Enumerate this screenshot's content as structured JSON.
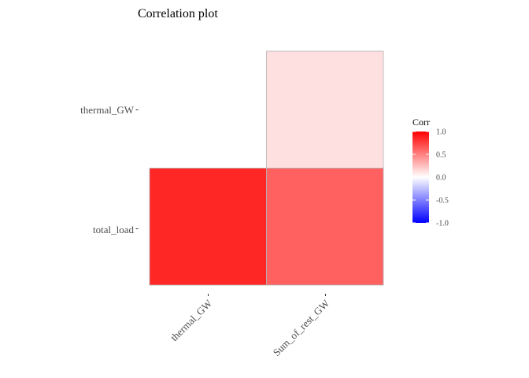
{
  "chart_data": {
    "type": "heatmap",
    "title": "Correlation plot",
    "x_categories": [
      "thermal_GW",
      "Sum_of_rest_GW"
    ],
    "y_categories": [
      "thermal_GW",
      "total_load"
    ],
    "cells": [
      {
        "x": "Sum_of_rest_GW",
        "y": "thermal_GW",
        "value": 0.12
      },
      {
        "x": "thermal_GW",
        "y": "total_load",
        "value": 0.85
      },
      {
        "x": "Sum_of_rest_GW",
        "y": "total_load",
        "value": 0.62
      }
    ],
    "legend": {
      "title": "Corr",
      "ticks": [
        "1.0",
        "0.5",
        "0.0",
        "-0.5",
        "-1.0"
      ],
      "tick_values": [
        1.0,
        0.5,
        0.0,
        -0.5,
        -1.0
      ],
      "range": [
        -1.0,
        1.0
      ],
      "position": "right"
    },
    "colors": {
      "high": "#ff0000",
      "mid": "#ffffff",
      "low": "#0000ff",
      "cell_border": "#b3b3b3"
    },
    "grid": false
  }
}
